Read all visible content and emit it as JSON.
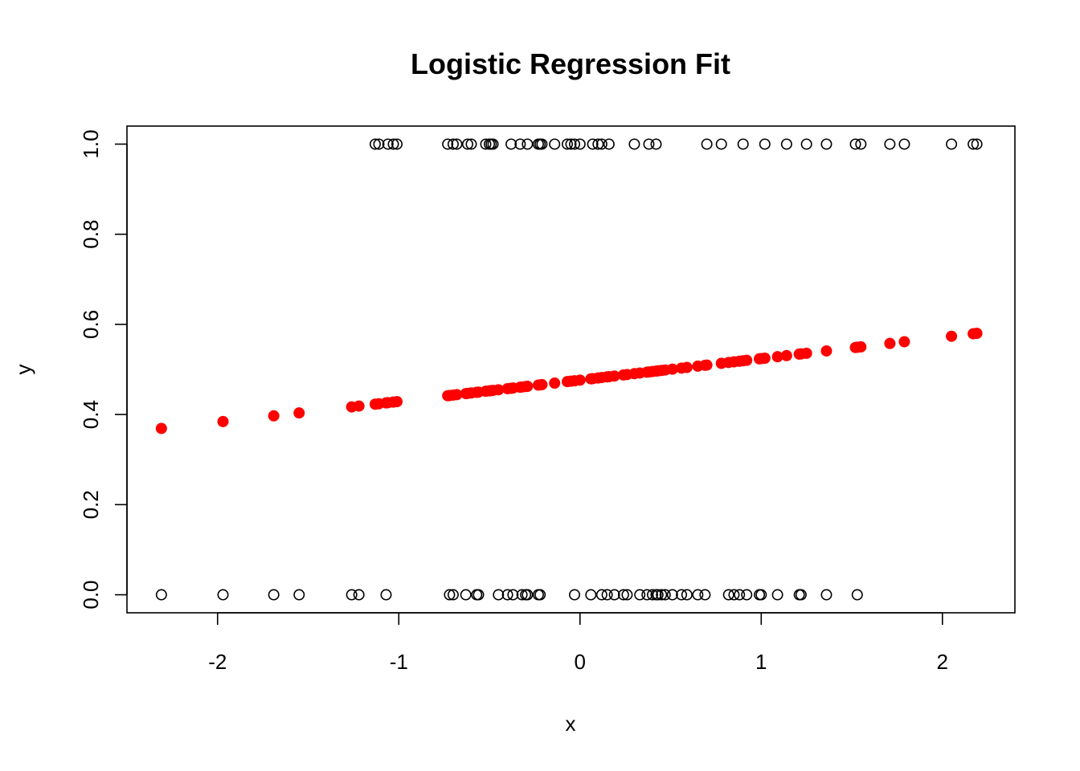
{
  "chart_data": {
    "type": "scatter",
    "title": "Logistic Regression Fit",
    "xlabel": "x",
    "ylabel": "y",
    "xlim": [
      -2.5,
      2.4
    ],
    "ylim": [
      -0.04,
      1.04
    ],
    "xticks": [
      "-2",
      "-1",
      "0",
      "1",
      "2"
    ],
    "yticks": [
      "0.0",
      "0.2",
      "0.4",
      "0.6",
      "0.8",
      "1.0"
    ],
    "grid": false,
    "legend": "none",
    "colors": {
      "observed": "#000000",
      "fitted": "#ff0000"
    },
    "series": [
      {
        "marker": "open-circle",
        "points": [
          [
            -1.13,
            1
          ],
          [
            -1.11,
            1
          ],
          [
            -1.06,
            1
          ],
          [
            -1.03,
            1
          ],
          [
            -1.01,
            1
          ],
          [
            -0.73,
            1
          ],
          [
            -0.7,
            1
          ],
          [
            -0.68,
            1
          ],
          [
            -0.62,
            1
          ],
          [
            -0.6,
            1
          ],
          [
            -0.52,
            1
          ],
          [
            -0.5,
            1
          ],
          [
            -0.49,
            1
          ],
          [
            -0.48,
            1
          ],
          [
            -0.38,
            1
          ],
          [
            -0.33,
            1
          ],
          [
            -0.29,
            1
          ],
          [
            -0.23,
            1
          ],
          [
            -0.22,
            1
          ],
          [
            -0.21,
            1
          ],
          [
            -0.14,
            1
          ],
          [
            -0.07,
            1
          ],
          [
            -0.05,
            1
          ],
          [
            -0.03,
            1
          ],
          [
            0.0,
            1
          ],
          [
            0.07,
            1
          ],
          [
            0.1,
            1
          ],
          [
            0.12,
            1
          ],
          [
            0.16,
            1
          ],
          [
            0.3,
            1
          ],
          [
            0.38,
            1
          ],
          [
            0.42,
            1
          ],
          [
            0.7,
            1
          ],
          [
            0.78,
            1
          ],
          [
            0.9,
            1
          ],
          [
            1.02,
            1
          ],
          [
            1.14,
            1
          ],
          [
            1.25,
            1
          ],
          [
            1.36,
            1
          ],
          [
            1.52,
            1
          ],
          [
            1.55,
            1
          ],
          [
            1.71,
            1
          ],
          [
            1.79,
            1
          ],
          [
            2.05,
            1
          ],
          [
            2.17,
            1
          ],
          [
            2.19,
            1
          ],
          [
            -2.31,
            0
          ],
          [
            -1.97,
            0
          ],
          [
            -1.69,
            0
          ],
          [
            -1.55,
            0
          ],
          [
            -1.26,
            0
          ],
          [
            -1.22,
            0
          ],
          [
            -1.07,
            0
          ],
          [
            -0.72,
            0
          ],
          [
            -0.7,
            0
          ],
          [
            -0.63,
            0
          ],
          [
            -0.57,
            0
          ],
          [
            -0.56,
            0
          ],
          [
            -0.45,
            0
          ],
          [
            -0.4,
            0
          ],
          [
            -0.37,
            0
          ],
          [
            -0.32,
            0
          ],
          [
            -0.3,
            0
          ],
          [
            -0.29,
            0
          ],
          [
            -0.23,
            0
          ],
          [
            -0.22,
            0
          ],
          [
            -0.03,
            0
          ],
          [
            0.06,
            0
          ],
          [
            0.12,
            0
          ],
          [
            0.15,
            0
          ],
          [
            0.19,
            0
          ],
          [
            0.24,
            0
          ],
          [
            0.26,
            0
          ],
          [
            0.33,
            0
          ],
          [
            0.37,
            0
          ],
          [
            0.4,
            0
          ],
          [
            0.42,
            0
          ],
          [
            0.43,
            0
          ],
          [
            0.45,
            0
          ],
          [
            0.47,
            0
          ],
          [
            0.51,
            0
          ],
          [
            0.56,
            0
          ],
          [
            0.59,
            0
          ],
          [
            0.65,
            0
          ],
          [
            0.69,
            0
          ],
          [
            0.82,
            0
          ],
          [
            0.85,
            0
          ],
          [
            0.88,
            0
          ],
          [
            0.92,
            0
          ],
          [
            0.99,
            0
          ],
          [
            1.0,
            0
          ],
          [
            1.09,
            0
          ],
          [
            1.21,
            0
          ],
          [
            1.22,
            0
          ],
          [
            1.36,
            0
          ],
          [
            1.53,
            0
          ]
        ]
      },
      {
        "marker": "filled-circle",
        "fit": {
          "intercept": -0.095,
          "slope": 0.191
        },
        "x": [
          -2.31,
          -1.97,
          -1.69,
          -1.55,
          -1.26,
          -1.22,
          -1.13,
          -1.11,
          -1.07,
          -1.06,
          -1.03,
          -1.01,
          -0.73,
          -0.72,
          -0.7,
          -0.68,
          -0.63,
          -0.62,
          -0.6,
          -0.57,
          -0.56,
          -0.52,
          -0.5,
          -0.49,
          -0.48,
          -0.45,
          -0.4,
          -0.38,
          -0.37,
          -0.33,
          -0.32,
          -0.3,
          -0.29,
          -0.23,
          -0.22,
          -0.21,
          -0.14,
          -0.07,
          -0.05,
          -0.03,
          0.0,
          0.06,
          0.07,
          0.1,
          0.12,
          0.15,
          0.16,
          0.19,
          0.24,
          0.26,
          0.3,
          0.33,
          0.37,
          0.38,
          0.4,
          0.42,
          0.43,
          0.45,
          0.47,
          0.51,
          0.56,
          0.59,
          0.65,
          0.69,
          0.7,
          0.78,
          0.82,
          0.85,
          0.88,
          0.9,
          0.92,
          0.99,
          1.0,
          1.02,
          1.09,
          1.14,
          1.21,
          1.22,
          1.25,
          1.36,
          1.52,
          1.53,
          1.55,
          1.71,
          1.79,
          2.05,
          2.17,
          2.19
        ]
      }
    ]
  }
}
